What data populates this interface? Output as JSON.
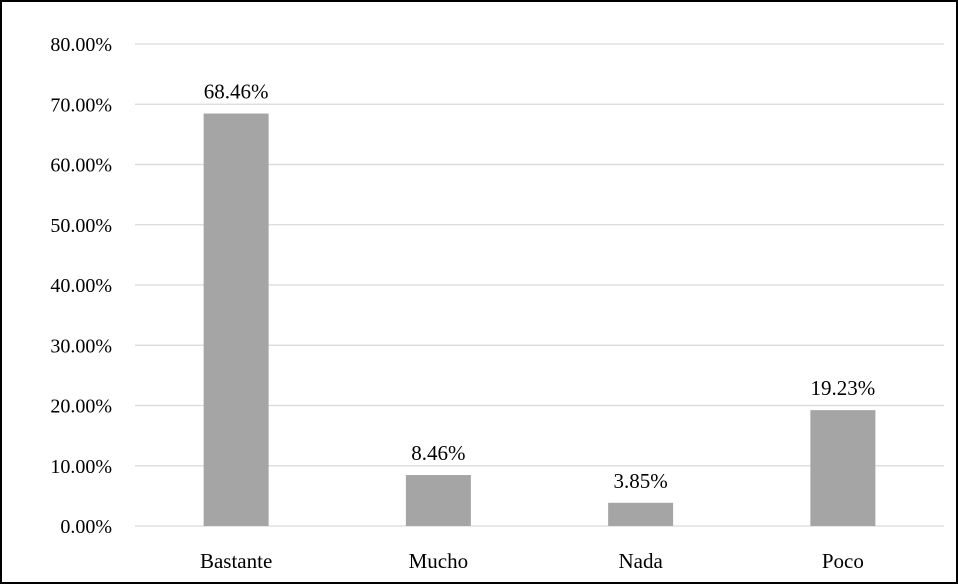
{
  "chart_data": {
    "type": "bar",
    "categories": [
      "Bastante",
      "Mucho",
      "Nada",
      "Poco"
    ],
    "values": [
      68.46,
      8.46,
      3.85,
      19.23
    ],
    "data_labels": [
      "68.46%",
      "8.46%",
      "3.85%",
      "19.23%"
    ],
    "title": "",
    "xlabel": "",
    "ylabel": "",
    "ylim": [
      0,
      80
    ],
    "yticks": [
      0,
      10,
      20,
      30,
      40,
      50,
      60,
      70,
      80
    ],
    "ytick_labels": [
      "0.00%",
      "10.00%",
      "20.00%",
      "30.00%",
      "40.00%",
      "50.00%",
      "60.00%",
      "70.00%",
      "80.00%"
    ],
    "grid": true,
    "legend": "none",
    "bar_color": "#a5a5a5"
  }
}
